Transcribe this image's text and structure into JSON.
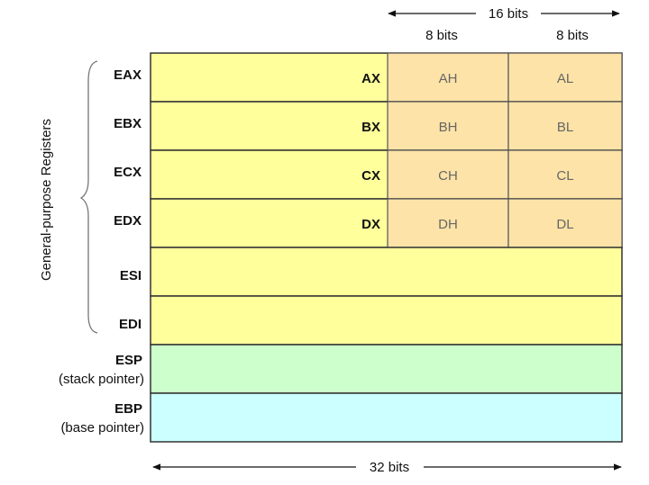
{
  "top_span": {
    "label": "16 bits",
    "left": "8 bits",
    "right": "8 bits"
  },
  "bottom_span": "32 bits",
  "group_label": "General-purpose Registers",
  "registers": [
    {
      "name": "EAX",
      "sub": "AX",
      "high": "AH",
      "low": "AL"
    },
    {
      "name": "EBX",
      "sub": "BX",
      "high": "BH",
      "low": "BL"
    },
    {
      "name": "ECX",
      "sub": "CX",
      "high": "CH",
      "low": "CL"
    },
    {
      "name": "EDX",
      "sub": "DX",
      "high": "DH",
      "low": "DL"
    },
    {
      "name": "ESI"
    },
    {
      "name": "EDI"
    },
    {
      "name": "ESP",
      "note": "(stack pointer)"
    },
    {
      "name": "EBP",
      "note": "(base pointer)"
    }
  ]
}
